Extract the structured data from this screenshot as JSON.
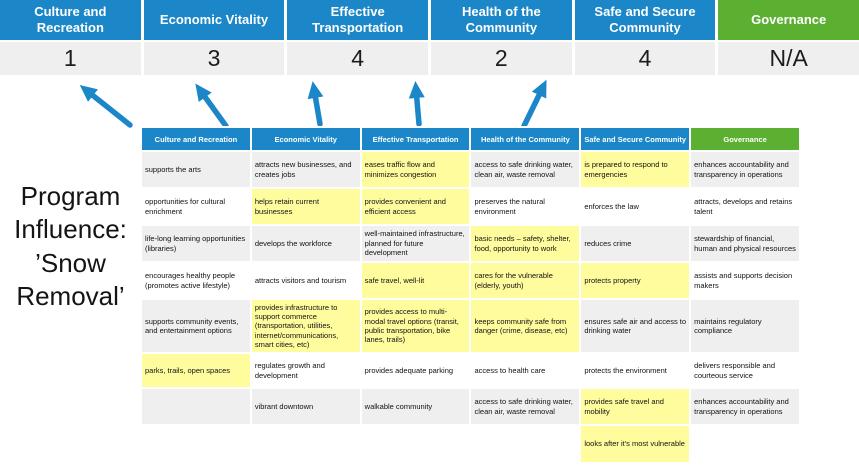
{
  "title": "Program Influence: ’Snow Removal’",
  "colors": {
    "blue": "#1B87C8",
    "green": "#5BB031",
    "highlight_yellow": "#FFFC9D",
    "row_gray": "#EFEFEF"
  },
  "scoreboard": {
    "columns": [
      {
        "label": "Culture and Recreation",
        "score": "1",
        "color": "blue"
      },
      {
        "label": "Economic Vitality",
        "score": "3",
        "color": "blue"
      },
      {
        "label": "Effective Transportation",
        "score": "4",
        "color": "blue"
      },
      {
        "label": "Health of the Community",
        "score": "2",
        "color": "blue"
      },
      {
        "label": "Safe and Secure Community",
        "score": "4",
        "color": "blue"
      },
      {
        "label": "Governance",
        "score": "N/A",
        "color": "green"
      }
    ]
  },
  "arrows": {
    "count": 5,
    "color": "#1B87C8",
    "direction": "from table header up to scores"
  },
  "matrix": {
    "headers": [
      "Culture and Recreation",
      "Economic Vitality",
      "Effective Transportation",
      "Health of the Community",
      "Safe and Secure Community",
      "Governance"
    ],
    "rows": [
      {
        "cells": [
          {
            "text": "supports the arts",
            "highlight": false
          },
          {
            "text": "attracts new businesses, and creates jobs",
            "highlight": false
          },
          {
            "text": "eases traffic flow and minimizes congestion",
            "highlight": true
          },
          {
            "text": "access to safe drinking water, clean air, waste removal",
            "highlight": false
          },
          {
            "text": "is prepared to respond to emergencies",
            "highlight": true
          },
          {
            "text": "enhances accountability and transparency in operations",
            "highlight": false
          }
        ]
      },
      {
        "cells": [
          {
            "text": "opportunities for cultural enrichment",
            "highlight": false
          },
          {
            "text": "helps retain current businesses",
            "highlight": true
          },
          {
            "text": "provides convenient and efficient access",
            "highlight": true
          },
          {
            "text": "preserves the natural environment",
            "highlight": false
          },
          {
            "text": "enforces the law",
            "highlight": false
          },
          {
            "text": "attracts, develops and retains talent",
            "highlight": false
          }
        ]
      },
      {
        "cells": [
          {
            "text": "life-long learning opportunities (libraries)",
            "highlight": false
          },
          {
            "text": "develops the workforce",
            "highlight": false
          },
          {
            "text": "well-maintained infrastructure, planned for future development",
            "highlight": false
          },
          {
            "text": "basic needs – safety, shelter, food, opportunity to work",
            "highlight": true
          },
          {
            "text": "reduces crime",
            "highlight": false
          },
          {
            "text": "stewardship of financial, human and physical resources",
            "highlight": false
          }
        ]
      },
      {
        "cells": [
          {
            "text": "encourages healthy people (promotes active lifestyle)",
            "highlight": false
          },
          {
            "text": "attracts visitors and tourism",
            "highlight": false
          },
          {
            "text": "safe travel, well-lit",
            "highlight": true
          },
          {
            "text": "cares for the vulnerable (elderly, youth)",
            "highlight": true
          },
          {
            "text": "protects property",
            "highlight": true
          },
          {
            "text": "assists and supports decision makers",
            "highlight": false
          }
        ]
      },
      {
        "cells": [
          {
            "text": "supports community events, and entertainment options",
            "highlight": false
          },
          {
            "text": "provides infrastructure to support commerce (transportation, utilities, internet/communications, smart cities, etc)",
            "highlight": true
          },
          {
            "text": "provides access to multi-modal travel options (transit, public transportation, bike lanes, trails)",
            "highlight": true
          },
          {
            "text": "keeps community safe from danger (crime, disease, etc)",
            "highlight": true
          },
          {
            "text": "ensures safe air and access to drinking water",
            "highlight": false
          },
          {
            "text": "maintains regulatory compliance",
            "highlight": false
          }
        ]
      },
      {
        "cells": [
          {
            "text": "parks, trails, open spaces",
            "highlight": true
          },
          {
            "text": "regulates growth and development",
            "highlight": false
          },
          {
            "text": "provides adequate parking",
            "highlight": false
          },
          {
            "text": "access to health care",
            "highlight": false
          },
          {
            "text": "protects the environment",
            "highlight": false
          },
          {
            "text": "delivers responsible and courteous service",
            "highlight": false
          }
        ]
      },
      {
        "cells": [
          {
            "text": "",
            "highlight": false
          },
          {
            "text": "vibrant downtown",
            "highlight": false
          },
          {
            "text": "walkable community",
            "highlight": false
          },
          {
            "text": "access to safe drinking water, clean air, waste removal",
            "highlight": false
          },
          {
            "text": "provides safe travel and mobility",
            "highlight": true
          },
          {
            "text": "enhances accountability and transparency in operations",
            "highlight": false
          }
        ]
      },
      {
        "cells": [
          {
            "text": "",
            "highlight": false
          },
          {
            "text": "",
            "highlight": false
          },
          {
            "text": "",
            "highlight": false
          },
          {
            "text": "",
            "highlight": false
          },
          {
            "text": "looks after it's most vulnerable",
            "highlight": true
          },
          {
            "text": "",
            "highlight": false
          }
        ]
      }
    ]
  }
}
